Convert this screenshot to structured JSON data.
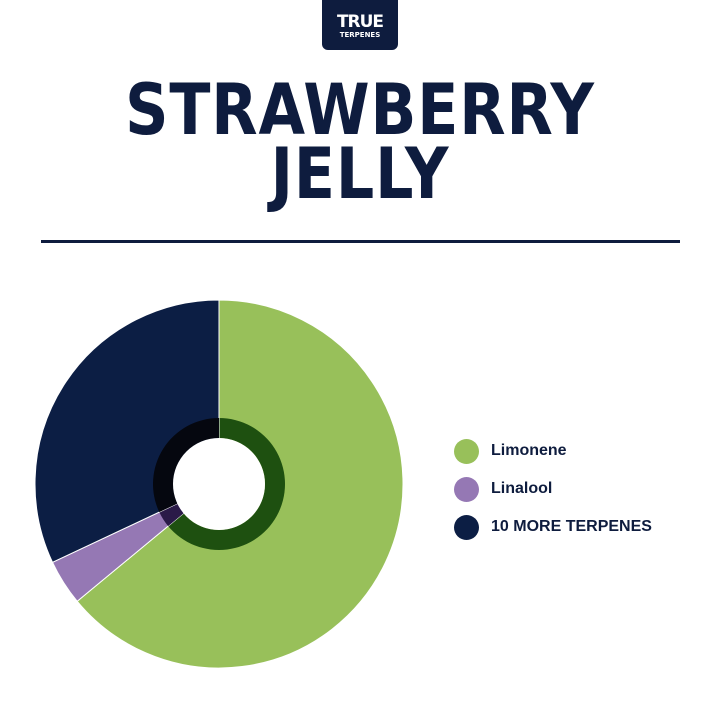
{
  "logo": {
    "line1": "TRUE",
    "line2": "TERPENES"
  },
  "title": {
    "line1": "STRAWBERRY",
    "line2": "JELLY"
  },
  "chart_data": {
    "type": "pie",
    "title": "STRAWBERRY JELLY",
    "categories": [
      "Limonene",
      "Linalool",
      "10 MORE TERPENES"
    ],
    "values": [
      64,
      4,
      32
    ],
    "colors": [
      "#98c05a",
      "#9578b4",
      "#0c1e44"
    ],
    "inner_colors": [
      "#1e5010",
      "#2a1a48",
      "#05070f"
    ],
    "legend": "right"
  }
}
